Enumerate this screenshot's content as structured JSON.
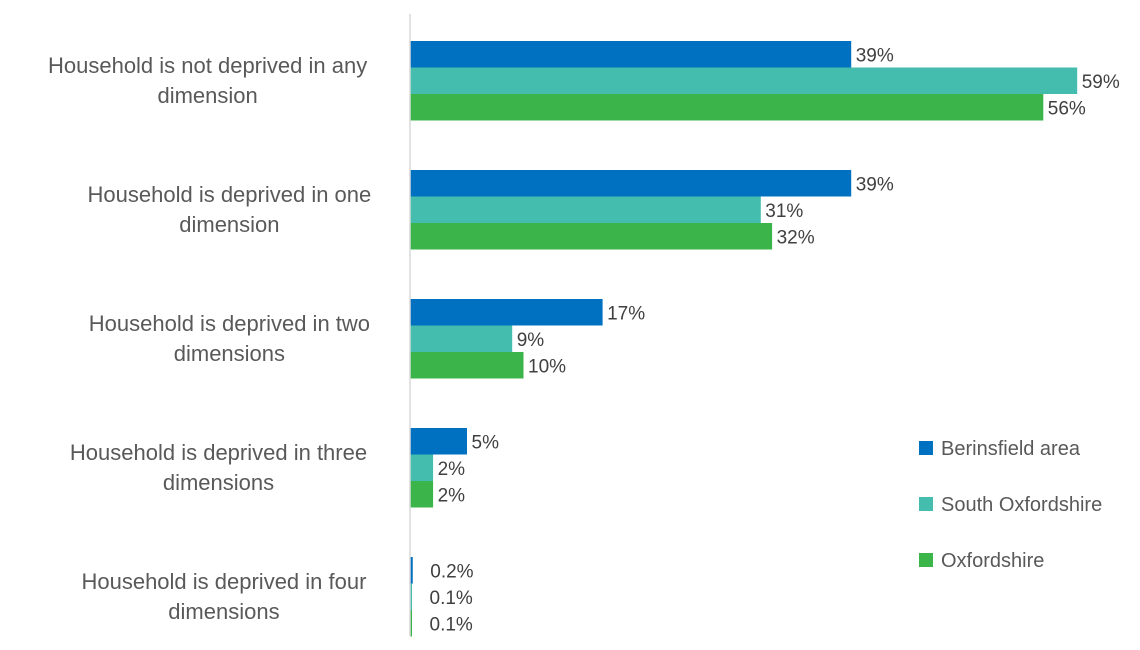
{
  "chart_data": {
    "type": "bar",
    "orientation": "horizontal",
    "categories": [
      "Household is not deprived in any dimension",
      "Household is deprived in one dimension",
      "Household is deprived in two dimensions",
      "Household is deprived in three dimensions",
      "Household is deprived in four dimensions"
    ],
    "category_lines": [
      [
        "Household is not deprived in any",
        "dimension"
      ],
      [
        "Household is deprived in one",
        "dimension"
      ],
      [
        "Household is deprived in two",
        "dimensions"
      ],
      [
        "Household is deprived in three",
        "dimensions"
      ],
      [
        "Household is deprived in four",
        "dimensions"
      ]
    ],
    "series": [
      {
        "name": "Berinsfield area",
        "color": "#0070C0",
        "values": [
          39,
          39,
          17,
          5,
          0.2
        ],
        "labels": [
          "39%",
          "39%",
          "17%",
          "5%",
          "0.2%"
        ]
      },
      {
        "name": "South Oxfordshire",
        "color": "#44BDAE",
        "values": [
          59,
          31,
          9,
          2,
          0.1
        ],
        "labels": [
          "59%",
          "31%",
          "9%",
          "2%",
          "0.1%"
        ]
      },
      {
        "name": "Oxfordshire",
        "color": "#3BB54A",
        "values": [
          56,
          32,
          10,
          2,
          0.1
        ],
        "labels": [
          "56%",
          "32%",
          "10%",
          "2%",
          "0.1%"
        ]
      }
    ],
    "value_unit": "%",
    "xlim": [
      0,
      60
    ],
    "grid": false,
    "legend_position": "right",
    "title": "",
    "xlabel": "",
    "ylabel": ""
  }
}
